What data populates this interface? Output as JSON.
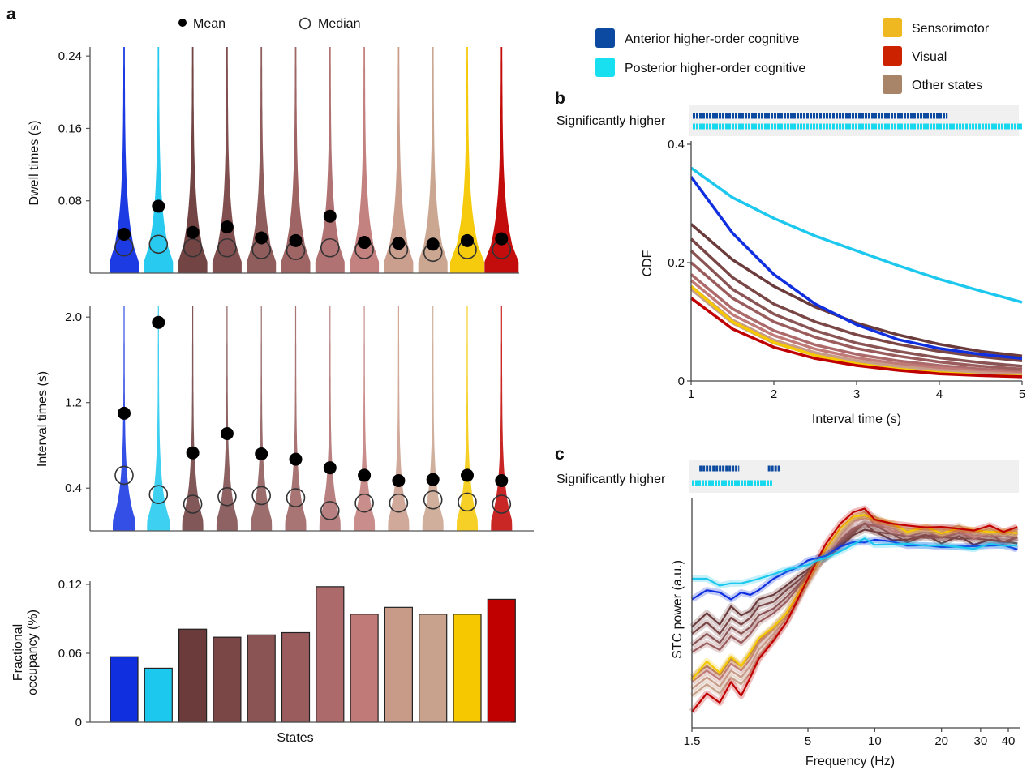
{
  "figure": {
    "panel_a": "a",
    "panel_b": "b",
    "panel_c": "c"
  },
  "state_colors": [
    "#1030e0",
    "#1cc8ee",
    "#6b3a3a",
    "#7a4646",
    "#8a5454",
    "#9a5c5c",
    "#ac6a6a",
    "#c07a78",
    "#c89a88",
    "#c8a28c",
    "#f5c800",
    "#c00000"
  ],
  "legend_a": {
    "mean": "Mean",
    "median": "Median"
  },
  "legend_groups": [
    {
      "label": "Anterior higher-order cognitive",
      "color": "#0b4aa0"
    },
    {
      "label": "Posterior higher-order cognitive",
      "color": "#18e0f0"
    },
    {
      "label": "Sensorimotor",
      "color": "#f0b820"
    },
    {
      "label": "Visual",
      "color": "#cc2200"
    },
    {
      "label": "Other states",
      "color": "#a88468"
    }
  ],
  "chart_data": [
    {
      "type": "violin",
      "ylabel": "Dwell times (s)",
      "yticks": [
        "0.08",
        "0.16",
        "0.24"
      ],
      "ytick_values": [
        0.08,
        0.16,
        0.24
      ],
      "ylim": [
        0,
        0.25
      ],
      "mean": [
        0.043,
        0.074,
        0.045,
        0.051,
        0.039,
        0.036,
        0.063,
        0.034,
        0.033,
        0.032,
        0.036,
        0.038
      ],
      "median": [
        0.029,
        0.032,
        0.028,
        0.028,
        0.026,
        0.025,
        0.028,
        0.026,
        0.026,
        0.023,
        0.026,
        0.026
      ]
    },
    {
      "type": "violin",
      "ylabel": "Interval times (s)",
      "yticks": [
        "0.4",
        "1.2",
        "2.0"
      ],
      "ytick_values": [
        0.4,
        1.2,
        2.0
      ],
      "ylim": [
        0,
        2.1
      ],
      "mean": [
        1.1,
        1.95,
        0.73,
        0.91,
        0.72,
        0.67,
        0.59,
        0.52,
        0.47,
        0.48,
        0.52,
        0.47
      ],
      "median": [
        0.52,
        0.34,
        0.25,
        0.32,
        0.33,
        0.31,
        0.19,
        0.26,
        0.26,
        0.29,
        0.27,
        0.25
      ]
    },
    {
      "type": "bar",
      "ylabel": "Fractional occupancy (%)",
      "ylabel_lines": [
        "Fractional",
        "occupancy (%)"
      ],
      "xlabel": "States",
      "yticks": [
        "0",
        "0.06",
        "0.12"
      ],
      "ytick_values": [
        0,
        0.06,
        0.12
      ],
      "ylim": [
        0,
        0.12
      ],
      "values": [
        0.057,
        0.047,
        0.081,
        0.074,
        0.076,
        0.078,
        0.118,
        0.094,
        0.1,
        0.094,
        0.094,
        0.107
      ]
    },
    {
      "type": "line",
      "xlabel": "Interval time (s)",
      "ylabel": "CDF",
      "xticks": [
        "1",
        "2",
        "3",
        "4",
        "5"
      ],
      "xtick_values": [
        1,
        2,
        3,
        4,
        5
      ],
      "yticks": [
        "0",
        "0.2",
        "0.4"
      ],
      "ytick_values": [
        0,
        0.2,
        0.4
      ],
      "xlim": [
        1,
        5
      ],
      "ylim": [
        0,
        0.4
      ],
      "sig_label": "Significantly higher",
      "sig_bars": [
        {
          "color": "#0b4aa0",
          "x_end": 4.1
        },
        {
          "color": "#18d8ee",
          "x_end": 5.0
        }
      ],
      "x": [
        1,
        1.5,
        2,
        2.5,
        3,
        3.5,
        4,
        4.5,
        5
      ],
      "series": [
        {
          "values": [
            0.345,
            0.25,
            0.18,
            0.13,
            0.095,
            0.07,
            0.055,
            0.045,
            0.038
          ]
        },
        {
          "values": [
            0.36,
            0.31,
            0.275,
            0.245,
            0.22,
            0.195,
            0.172,
            0.152,
            0.133
          ]
        },
        {
          "values": [
            0.265,
            0.205,
            0.16,
            0.125,
            0.098,
            0.078,
            0.062,
            0.05,
            0.042
          ]
        },
        {
          "values": [
            0.24,
            0.175,
            0.13,
            0.1,
            0.078,
            0.062,
            0.05,
            0.041,
            0.034
          ]
        },
        {
          "values": [
            0.22,
            0.155,
            0.113,
            0.085,
            0.064,
            0.05,
            0.039,
            0.031,
            0.025
          ]
        },
        {
          "values": [
            0.2,
            0.14,
            0.1,
            0.074,
            0.055,
            0.042,
            0.032,
            0.025,
            0.02
          ]
        },
        {
          "values": [
            0.18,
            0.122,
            0.085,
            0.061,
            0.045,
            0.034,
            0.026,
            0.02,
            0.016
          ]
        },
        {
          "values": [
            0.17,
            0.112,
            0.077,
            0.054,
            0.039,
            0.029,
            0.022,
            0.017,
            0.013
          ]
        },
        {
          "values": [
            0.16,
            0.103,
            0.069,
            0.048,
            0.034,
            0.025,
            0.018,
            0.014,
            0.011
          ]
        },
        {
          "values": [
            0.155,
            0.098,
            0.064,
            0.044,
            0.031,
            0.022,
            0.016,
            0.012,
            0.009
          ]
        },
        {
          "values": [
            0.16,
            0.1,
            0.065,
            0.043,
            0.029,
            0.02,
            0.014,
            0.01,
            0.008
          ]
        },
        {
          "values": [
            0.14,
            0.088,
            0.057,
            0.038,
            0.026,
            0.018,
            0.012,
            0.009,
            0.007
          ]
        }
      ]
    },
    {
      "type": "line",
      "xlabel": "Frequency (Hz)",
      "ylabel": "STC power (a.u.)",
      "xscale": "log",
      "xticks": [
        "1.5",
        "5",
        "10",
        "20",
        "30",
        "40"
      ],
      "xtick_values": [
        1.5,
        5,
        10,
        20,
        30,
        40
      ],
      "xlim": [
        1.5,
        45
      ],
      "ylim": [
        0,
        1
      ],
      "sig_label": "Significantly higher",
      "sig_bars": [
        {
          "color": "#0b4aa0",
          "x_start": 1.62,
          "x_end": 2.45
        },
        {
          "color": "#0b4aa0",
          "x_start": 3.3,
          "x_end": 3.75
        },
        {
          "color": "#18d8ee",
          "x_start": 1.5,
          "x_end": 3.45
        }
      ],
      "x": [
        1.5,
        1.75,
        2,
        2.25,
        2.5,
        2.75,
        3,
        3.5,
        4,
        4.5,
        5,
        5.5,
        6,
        7,
        8,
        9,
        10,
        12,
        14,
        17,
        20,
        24,
        28,
        33,
        38,
        44
      ],
      "series": [
        {
          "values": [
            0.56,
            0.6,
            0.59,
            0.56,
            0.59,
            0.58,
            0.6,
            0.65,
            0.68,
            0.7,
            0.73,
            0.74,
            0.75,
            0.79,
            0.81,
            0.82,
            0.82,
            0.8,
            0.8,
            0.79,
            0.8,
            0.79,
            0.78,
            0.8,
            0.79,
            0.79
          ]
        },
        {
          "values": [
            0.65,
            0.65,
            0.62,
            0.63,
            0.63,
            0.64,
            0.65,
            0.67,
            0.69,
            0.7,
            0.71,
            0.73,
            0.74,
            0.77,
            0.8,
            0.82,
            0.81,
            0.8,
            0.79,
            0.8,
            0.79,
            0.8,
            0.78,
            0.79,
            0.8,
            0.79
          ]
        },
        {
          "values": [
            0.44,
            0.5,
            0.45,
            0.53,
            0.49,
            0.51,
            0.56,
            0.58,
            0.62,
            0.66,
            0.69,
            0.72,
            0.74,
            0.79,
            0.84,
            0.87,
            0.85,
            0.83,
            0.82,
            0.83,
            0.81,
            0.83,
            0.81,
            0.82,
            0.8,
            0.81
          ]
        },
        {
          "values": [
            0.41,
            0.46,
            0.41,
            0.48,
            0.45,
            0.48,
            0.53,
            0.55,
            0.6,
            0.64,
            0.68,
            0.71,
            0.74,
            0.8,
            0.85,
            0.88,
            0.86,
            0.84,
            0.82,
            0.84,
            0.82,
            0.83,
            0.82,
            0.83,
            0.81,
            0.82
          ]
        },
        {
          "values": [
            0.36,
            0.41,
            0.37,
            0.44,
            0.41,
            0.44,
            0.49,
            0.52,
            0.57,
            0.62,
            0.67,
            0.71,
            0.75,
            0.81,
            0.86,
            0.89,
            0.87,
            0.85,
            0.83,
            0.84,
            0.83,
            0.84,
            0.83,
            0.84,
            0.82,
            0.83
          ]
        },
        {
          "values": [
            0.33,
            0.37,
            0.34,
            0.4,
            0.37,
            0.41,
            0.46,
            0.5,
            0.55,
            0.61,
            0.66,
            0.71,
            0.75,
            0.82,
            0.87,
            0.9,
            0.88,
            0.86,
            0.84,
            0.85,
            0.84,
            0.85,
            0.83,
            0.84,
            0.83,
            0.84
          ]
        },
        {
          "values": [
            0.22,
            0.27,
            0.23,
            0.3,
            0.27,
            0.32,
            0.38,
            0.44,
            0.5,
            0.58,
            0.65,
            0.71,
            0.76,
            0.84,
            0.9,
            0.92,
            0.9,
            0.87,
            0.85,
            0.86,
            0.85,
            0.86,
            0.84,
            0.85,
            0.84,
            0.85
          ]
        },
        {
          "values": [
            0.2,
            0.25,
            0.21,
            0.28,
            0.25,
            0.3,
            0.37,
            0.43,
            0.49,
            0.57,
            0.64,
            0.7,
            0.76,
            0.84,
            0.9,
            0.92,
            0.9,
            0.87,
            0.85,
            0.86,
            0.85,
            0.86,
            0.84,
            0.85,
            0.84,
            0.85
          ]
        },
        {
          "values": [
            0.17,
            0.22,
            0.18,
            0.25,
            0.22,
            0.27,
            0.34,
            0.41,
            0.48,
            0.56,
            0.64,
            0.7,
            0.76,
            0.85,
            0.91,
            0.93,
            0.91,
            0.88,
            0.86,
            0.87,
            0.86,
            0.87,
            0.85,
            0.86,
            0.85,
            0.86
          ]
        },
        {
          "values": [
            0.14,
            0.19,
            0.15,
            0.22,
            0.19,
            0.24,
            0.31,
            0.39,
            0.46,
            0.55,
            0.63,
            0.7,
            0.76,
            0.85,
            0.91,
            0.93,
            0.91,
            0.88,
            0.86,
            0.87,
            0.86,
            0.87,
            0.85,
            0.86,
            0.85,
            0.86
          ]
        },
        {
          "values": [
            0.21,
            0.29,
            0.24,
            0.31,
            0.27,
            0.33,
            0.39,
            0.44,
            0.5,
            0.58,
            0.65,
            0.72,
            0.78,
            0.87,
            0.92,
            0.94,
            0.91,
            0.88,
            0.86,
            0.87,
            0.86,
            0.87,
            0.85,
            0.86,
            0.85,
            0.86
          ]
        },
        {
          "values": [
            0.07,
            0.15,
            0.11,
            0.2,
            0.14,
            0.22,
            0.3,
            0.38,
            0.46,
            0.56,
            0.65,
            0.73,
            0.8,
            0.89,
            0.94,
            0.95,
            0.92,
            0.89,
            0.87,
            0.88,
            0.87,
            0.88,
            0.86,
            0.87,
            0.86,
            0.87
          ]
        }
      ]
    }
  ]
}
